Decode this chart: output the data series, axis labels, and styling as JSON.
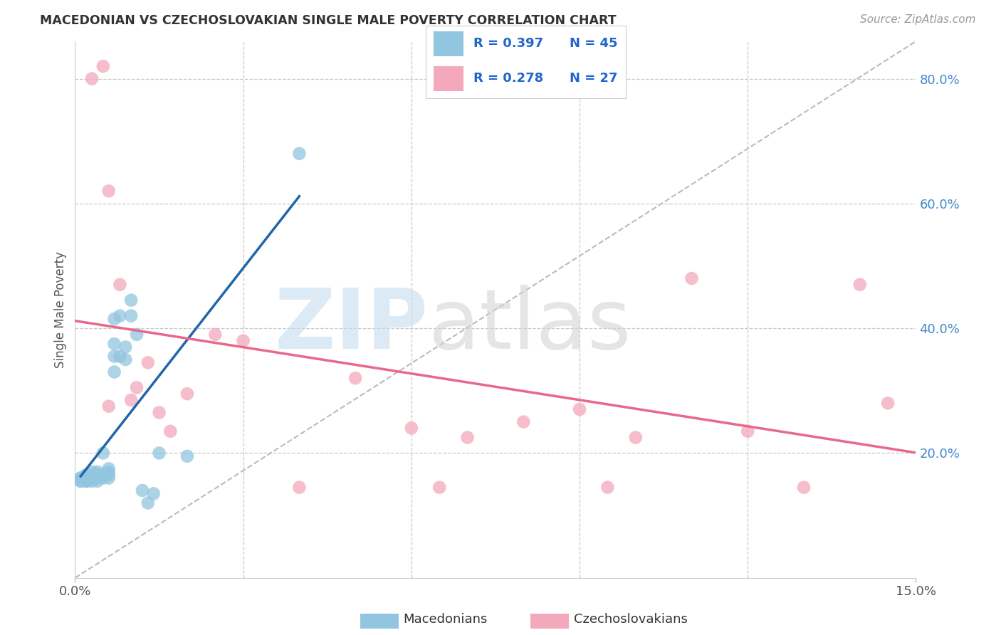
{
  "title": "MACEDONIAN VS CZECHOSLOVAKIAN SINGLE MALE POVERTY CORRELATION CHART",
  "source": "Source: ZipAtlas.com",
  "ylabel": "Single Male Poverty",
  "xlim": [
    0,
    0.15
  ],
  "ylim": [
    0.0,
    0.86
  ],
  "yticks_right": [
    0.2,
    0.4,
    0.6,
    0.8
  ],
  "ytick_labels_right": [
    "20.0%",
    "40.0%",
    "60.0%",
    "80.0%"
  ],
  "background_color": "#ffffff",
  "grid_color": "#c8c8c8",
  "blue_color": "#92c5e0",
  "pink_color": "#f4a8bc",
  "blue_line_color": "#2266aa",
  "pink_line_color": "#e8688a",
  "ref_line_color": "#bbbbbb",
  "legend_color": "#2266cc",
  "mac_x": [
    0.001,
    0.001,
    0.001,
    0.001,
    0.002,
    0.002,
    0.002,
    0.002,
    0.002,
    0.002,
    0.003,
    0.003,
    0.003,
    0.003,
    0.003,
    0.003,
    0.004,
    0.004,
    0.004,
    0.004,
    0.004,
    0.005,
    0.005,
    0.005,
    0.006,
    0.006,
    0.006,
    0.006,
    0.007,
    0.007,
    0.007,
    0.007,
    0.008,
    0.008,
    0.009,
    0.009,
    0.01,
    0.01,
    0.011,
    0.012,
    0.013,
    0.014,
    0.015,
    0.02,
    0.04
  ],
  "mac_y": [
    0.155,
    0.155,
    0.16,
    0.16,
    0.155,
    0.155,
    0.155,
    0.16,
    0.165,
    0.165,
    0.155,
    0.16,
    0.16,
    0.165,
    0.165,
    0.17,
    0.155,
    0.16,
    0.165,
    0.165,
    0.17,
    0.16,
    0.165,
    0.2,
    0.16,
    0.165,
    0.17,
    0.175,
    0.33,
    0.355,
    0.375,
    0.415,
    0.355,
    0.42,
    0.35,
    0.37,
    0.42,
    0.445,
    0.39,
    0.14,
    0.12,
    0.135,
    0.2,
    0.195,
    0.68
  ],
  "czech_x": [
    0.005,
    0.006,
    0.006,
    0.008,
    0.01,
    0.011,
    0.013,
    0.015,
    0.017,
    0.02,
    0.025,
    0.03,
    0.04,
    0.05,
    0.06,
    0.065,
    0.07,
    0.08,
    0.09,
    0.095,
    0.1,
    0.11,
    0.12,
    0.13,
    0.14,
    0.145,
    0.003
  ],
  "czech_y": [
    0.82,
    0.275,
    0.62,
    0.47,
    0.285,
    0.305,
    0.345,
    0.265,
    0.235,
    0.295,
    0.39,
    0.38,
    0.145,
    0.32,
    0.24,
    0.145,
    0.225,
    0.25,
    0.27,
    0.145,
    0.225,
    0.48,
    0.235,
    0.145,
    0.47,
    0.28,
    0.8
  ]
}
